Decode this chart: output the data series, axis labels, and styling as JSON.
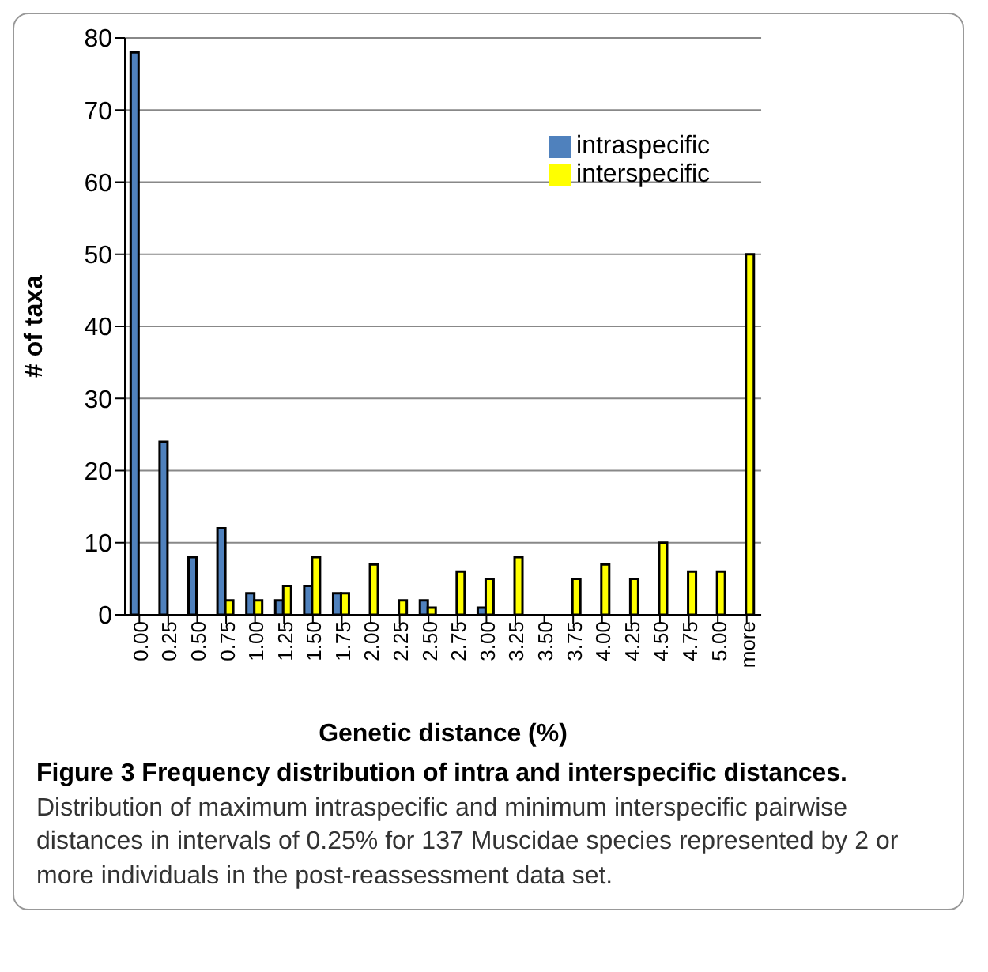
{
  "chart_data": {
    "type": "bar",
    "title": "Figure 3 Frequency distribution of intra and interspecific distances.",
    "annotations": [
      "Distribution of maximum intraspecific and minimum interspecific pairwise distances in intervals of 0.25% for 137 Muscidae species represented by 2 or more individuals in the post-reassessment data set."
    ],
    "xlabel": "Genetic distance (%)",
    "ylabel": "# of taxa",
    "categories": [
      "0.00",
      "0.25",
      "0.50",
      "0.75",
      "1.00",
      "1.25",
      "1.50",
      "1.75",
      "2.00",
      "2.25",
      "2.50",
      "2.75",
      "3.00",
      "3.25",
      "3.50",
      "3.75",
      "4.00",
      "4.25",
      "4.50",
      "4.75",
      "5.00",
      "more"
    ],
    "series": [
      {
        "name": "intraspecific",
        "color": "#4f81bd",
        "values": [
          78,
          24,
          8,
          12,
          3,
          2,
          4,
          3,
          0,
          0,
          2,
          0,
          1,
          0,
          0,
          0,
          0,
          0,
          0,
          0,
          0,
          0
        ]
      },
      {
        "name": "interspecific",
        "color": "#ffff00",
        "values": [
          0,
          0,
          0,
          2,
          2,
          4,
          8,
          3,
          7,
          2,
          1,
          6,
          5,
          8,
          0,
          5,
          7,
          5,
          10,
          6,
          6,
          50
        ]
      }
    ],
    "ylim": [
      0,
      80
    ],
    "yticks": [
      0,
      10,
      20,
      30,
      40,
      50,
      60,
      70,
      80
    ],
    "grid": "y",
    "legend": "top right"
  }
}
